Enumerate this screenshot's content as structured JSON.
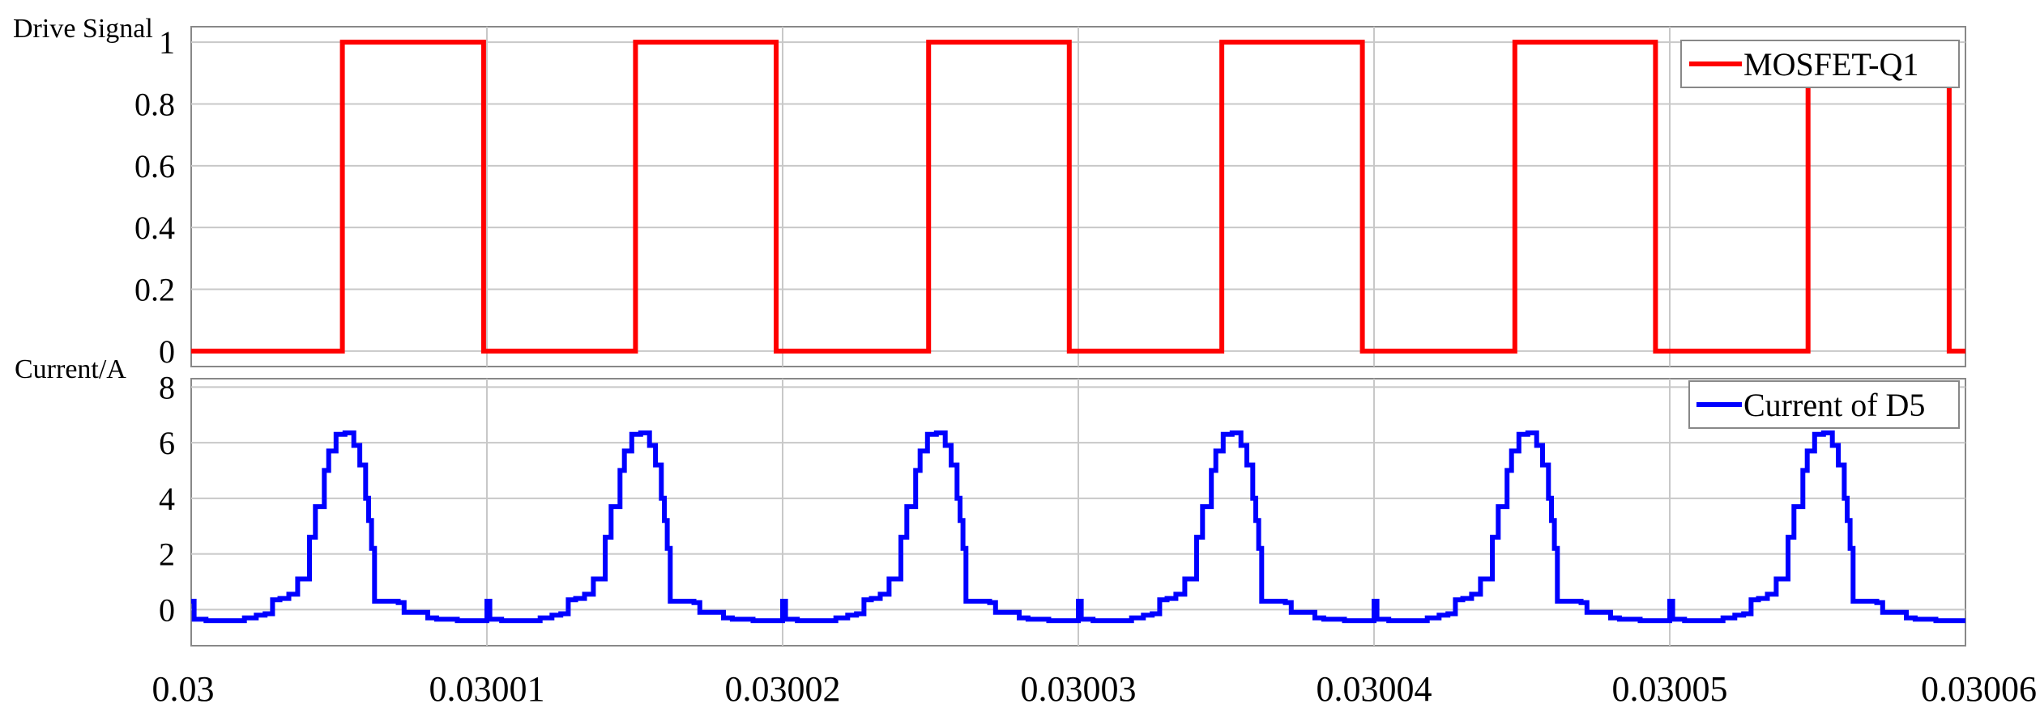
{
  "chart_data": [
    {
      "type": "line",
      "ylabel": "Drive Signal",
      "xlim": [
        0.03,
        0.03006
      ],
      "ylim": [
        -0.05,
        1.05
      ],
      "yticks": [
        "0",
        "0.2",
        "0.4",
        "0.6",
        "0.8",
        "1"
      ],
      "ytick_values": [
        0,
        0.2,
        0.4,
        0.6,
        0.8,
        1
      ],
      "grid": true,
      "legend_position": "top-right",
      "series": [
        {
          "name": "MOSFET-Q1",
          "color": "#ff0000",
          "step": true,
          "x": [
            0.03,
            0.030005111,
            0.030009889,
            0.030015025,
            0.03001978,
            0.030024938,
            0.030029692,
            0.030034851,
            0.030039605,
            0.030044763,
            0.030049518,
            0.030054676,
            0.03005945
          ],
          "y": [
            0,
            1,
            0,
            1,
            0,
            1,
            0,
            1,
            0,
            1,
            0,
            1,
            0
          ]
        }
      ]
    },
    {
      "type": "line",
      "ylabel": "Current/A",
      "xlim": [
        0.03,
        0.03006
      ],
      "ylim": [
        -1.3,
        8.3
      ],
      "yticks": [
        "0",
        "2",
        "4",
        "6",
        "8"
      ],
      "ytick_values": [
        0,
        2,
        4,
        6,
        8
      ],
      "grid": true,
      "legend_position": "top-right",
      "xticks": [
        "0.03",
        "0.03001",
        "0.03002",
        "0.03003",
        "0.03004",
        "0.03005",
        "0.03006"
      ],
      "xtick_values": [
        0.03,
        0.03001,
        0.03002,
        0.03003,
        0.03004,
        0.03005,
        0.03006
      ],
      "series": [
        {
          "name": "Current of D5",
          "color": "#0000ff",
          "step": true,
          "period": 1e-05,
          "cycles": 6,
          "pulse_profile_dx": [
            0,
            5e-08,
            1e-07,
            5e-07,
            1.5e-06,
            1.8e-06,
            2.2e-06,
            2.5e-06,
            2.75e-06,
            3e-06,
            3.3e-06,
            3.6e-06,
            4e-06,
            4.2e-06,
            4.5e-06,
            4.65e-06,
            4.9e-06,
            5.2e-06,
            5.5e-06,
            5.7e-06,
            5.9e-06,
            6e-06,
            6.1e-06,
            6.2e-06,
            6.7e-06,
            7e-06,
            7.2e-06,
            8e-06,
            8.3e-06,
            9e-06,
            9.8e-06
          ],
          "pulse_profile_y": [
            0.3,
            0.3,
            -0.35,
            -0.4,
            -0.4,
            -0.3,
            -0.2,
            -0.15,
            0.35,
            0.4,
            0.55,
            1.1,
            2.6,
            3.7,
            5.0,
            5.7,
            6.3,
            6.35,
            5.9,
            5.2,
            4.0,
            3.2,
            2.2,
            0.3,
            0.3,
            0.25,
            -0.1,
            -0.3,
            -0.35,
            -0.4,
            -0.4
          ]
        }
      ]
    }
  ]
}
